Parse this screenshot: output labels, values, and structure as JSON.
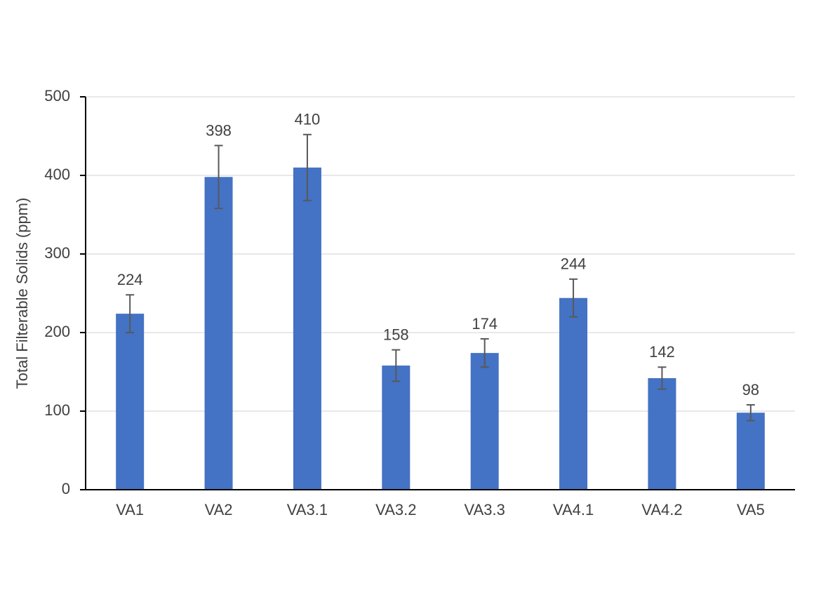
{
  "chart_data": {
    "type": "bar",
    "y_label": "Total Filterable Solids (ppm)",
    "categories": [
      "VA1",
      "VA2",
      "VA3.1",
      "VA3.2",
      "VA3.3",
      "VA4.1",
      "VA4.2",
      "VA5"
    ],
    "values": [
      224,
      398,
      410,
      158,
      174,
      244,
      142,
      98
    ],
    "errors": [
      24,
      40,
      42,
      20,
      18,
      24,
      14,
      10
    ],
    "color": "#4472c4",
    "error_color": "#595959",
    "ylim": [
      0,
      500
    ],
    "yticks": [
      0,
      100,
      200,
      300,
      400,
      500
    ],
    "grid": true
  }
}
